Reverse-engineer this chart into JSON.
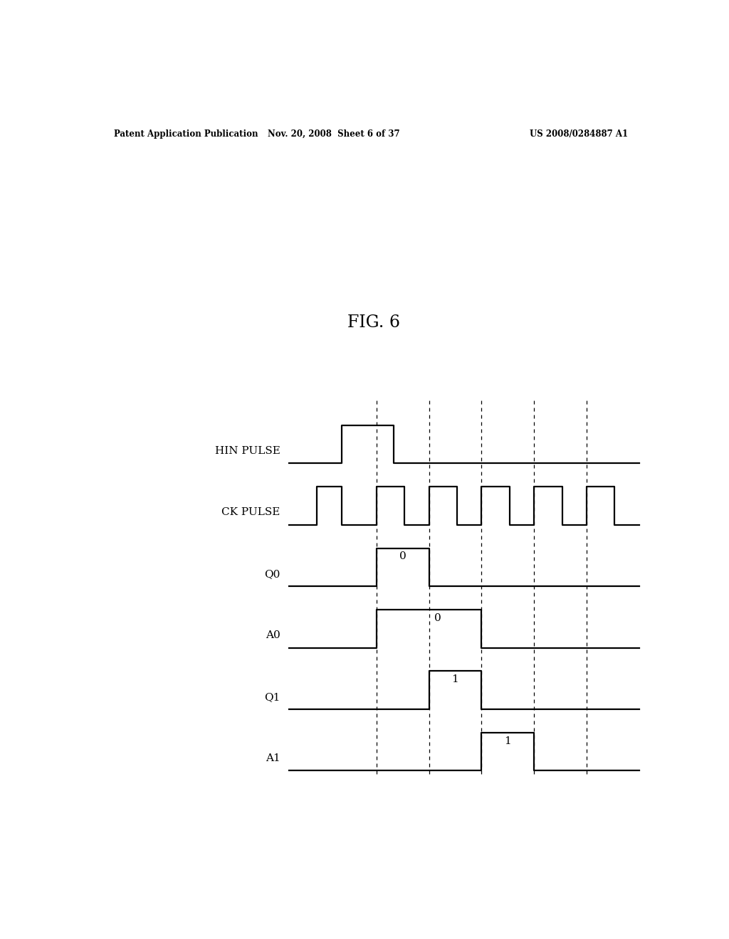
{
  "title": "FIG. 6",
  "header_left": "Patent Application Publication",
  "header_center": "Nov. 20, 2008  Sheet 6 of 37",
  "header_right": "US 2008/0284887 A1",
  "background_color": "#ffffff",
  "signal_labels": [
    "HIN PULSE",
    "CK PULSE",
    "Q0",
    "A0",
    "Q1",
    "A1"
  ],
  "time_total": 10.0,
  "dashed_lines_x": [
    2.5,
    4.0,
    5.5,
    7.0,
    8.5
  ],
  "hin_pulse_times": [
    0.0,
    1.5,
    1.5,
    3.0,
    3.0,
    10.0
  ],
  "hin_pulse_vals": [
    0,
    0,
    1,
    1,
    0,
    0
  ],
  "ck_pulse_times": [
    0.0,
    0.8,
    0.8,
    1.5,
    1.5,
    2.5,
    2.5,
    3.3,
    3.3,
    4.0,
    4.0,
    4.8,
    4.8,
    5.5,
    5.5,
    6.3,
    6.3,
    7.0,
    7.0,
    7.8,
    7.8,
    8.5,
    8.5,
    9.3,
    9.3,
    10.0
  ],
  "ck_pulse_vals": [
    0,
    0,
    1,
    1,
    0,
    0,
    1,
    1,
    0,
    0,
    1,
    1,
    0,
    0,
    1,
    1,
    0,
    0,
    1,
    1,
    0,
    0,
    1,
    1,
    0,
    0
  ],
  "q0_times": [
    0.0,
    2.5,
    2.5,
    4.0,
    4.0,
    10.0
  ],
  "q0_vals": [
    0,
    0,
    1,
    1,
    0,
    0
  ],
  "a0_times": [
    0.0,
    2.5,
    2.5,
    5.5,
    5.5,
    10.0
  ],
  "a0_vals": [
    0,
    0,
    1,
    1,
    0,
    0
  ],
  "q1_times": [
    0.0,
    4.0,
    4.0,
    5.5,
    5.5,
    10.0
  ],
  "q1_vals": [
    0,
    0,
    1,
    1,
    0,
    0
  ],
  "a1_times": [
    0.0,
    5.5,
    5.5,
    7.0,
    7.0,
    10.0
  ],
  "a1_vals": [
    0,
    0,
    1,
    1,
    0,
    0
  ],
  "ann_texts": [
    "0",
    "0",
    "1",
    "1"
  ],
  "ann_times": [
    3.25,
    4.25,
    4.75,
    6.25
  ],
  "ann_sig_idx": [
    2,
    3,
    4,
    5
  ]
}
